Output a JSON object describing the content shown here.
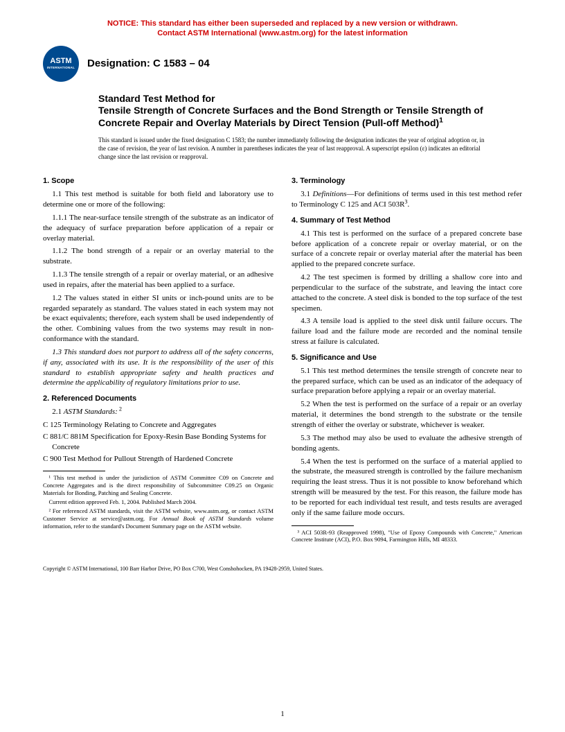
{
  "notice": {
    "line1": "NOTICE: This standard has either been superseded and replaced by a new version or withdrawn.",
    "line2": "Contact ASTM International (www.astm.org) for the latest information"
  },
  "logo": {
    "main": "ASTM",
    "sub": "INTERNATIONAL"
  },
  "designation": "Designation: C 1583 – 04",
  "title": {
    "lead": "Standard Test Method for",
    "main": "Tensile Strength of Concrete Surfaces and the Bond Strength or Tensile Strength of Concrete Repair and Overlay Materials by Direct Tension (Pull-off Method)",
    "sup": "1"
  },
  "issuance": "This standard is issued under the fixed designation C 1583; the number immediately following the designation indicates the year of original adoption or, in the case of revision, the year of last revision. A number in parentheses indicates the year of last reapproval. A superscript epsilon (ε) indicates an editorial change since the last revision or reapproval.",
  "sections": {
    "s1": {
      "h": "1. Scope",
      "p1": "1.1 This test method is suitable for both field and laboratory use to determine one or more of the following:",
      "p111": "1.1.1 The near-surface tensile strength of the substrate as an indicator of the adequacy of surface preparation before application of a repair or overlay material.",
      "p112": "1.1.2 The bond strength of a repair or an overlay material to the substrate.",
      "p113": "1.1.3 The tensile strength of a repair or overlay material, or an adhesive used in repairs, after the material has been applied to a surface.",
      "p12": "1.2 The values stated in either SI units or inch-pound units are to be regarded separately as standard. The values stated in each system may not be exact equivalents; therefore, each system shall be used independently of the other. Combining values from the two systems may result in non-conformance with the standard.",
      "p13": "1.3 This standard does not purport to address all of the safety concerns, if any, associated with its use. It is the responsibility of the user of this standard to establish appropriate safety and health practices and determine the applicability of regulatory limitations prior to use."
    },
    "s2": {
      "h": "2. Referenced Documents",
      "p21a": "2.1 ",
      "p21b": "ASTM Standards:",
      "p21sup": " 2",
      "c125": "C 125 Terminology Relating to Concrete and Aggregates",
      "c881": "C 881/C 881M Specification for Epoxy-Resin Base Bonding Systems for Concrete",
      "c900": "C 900 Test Method for Pullout Strength of Hardened Concrete"
    },
    "s3": {
      "h": "3. Terminology",
      "p31a": "3.1 ",
      "p31b": "Definitions",
      "p31c": "—For definitions of terms used in this test method refer to Terminology C 125 and ACI 503R",
      "p31sup": "3",
      "p31d": "."
    },
    "s4": {
      "h": "4. Summary of Test Method",
      "p41": "4.1 This test is performed on the surface of a prepared concrete base before application of a concrete repair or overlay material, or on the surface of a concrete repair or overlay material after the material has been applied to the prepared concrete surface.",
      "p42": "4.2 The test specimen is formed by drilling a shallow core into and perpendicular to the surface of the substrate, and leaving the intact core attached to the concrete. A steel disk is bonded to the top surface of the test specimen.",
      "p43": "4.3 A tensile load is applied to the steel disk until failure occurs. The failure load and the failure mode are recorded and the nominal tensile stress at failure is calculated."
    },
    "s5": {
      "h": "5. Significance and Use",
      "p51": "5.1 This test method determines the tensile strength of concrete near to the prepared surface, which can be used as an indicator of the adequacy of surface preparation before applying a repair or an overlay material.",
      "p52": "5.2 When the test is performed on the surface of a repair or an overlay material, it determines the bond strength to the substrate or the tensile strength of either the overlay or substrate, whichever is weaker.",
      "p53": "5.3 The method may also be used to evaluate the adhesive strength of bonding agents.",
      "p54": "5.4 When the test is performed on the surface of a material applied to the substrate, the measured strength is controlled by the failure mechanism requiring the least stress. Thus it is not possible to know beforehand which strength will be measured by the test. For this reason, the failure mode has to be reported for each individual test result, and tests results are averaged only if the same failure mode occurs."
    }
  },
  "footnotes": {
    "left": {
      "f1": "¹ This test method is under the jurisdiction of ASTM Committee C09 on Concrete and Concrete Aggregates and is the direct responsibility of Subcommittee C09.25 on Organic Materials for Bonding, Patching and Sealing Concrete.",
      "f1b": "Current edition approved Feb. 1, 2004. Published March 2004.",
      "f2a": "² For referenced ASTM standards, visit the ASTM website, www.astm.org, or contact ASTM Customer Service at service@astm.org. For ",
      "f2b": "Annual Book of ASTM Standards",
      "f2c": " volume information, refer to the standard's Document Summary page on the ASTM website."
    },
    "right": {
      "f3": "³ ACI 503R-93 (Reapproved 1998), \"Use of Epoxy Compounds with Concrete,\" American Concrete Institute (ACI), P.O. Box 9094, Farmington Hills, MI 48333."
    }
  },
  "copyright": "Copyright © ASTM International, 100 Barr Harbor Drive, PO Box C700, West Conshohocken, PA 19428-2959, United States.",
  "page_number": "1"
}
